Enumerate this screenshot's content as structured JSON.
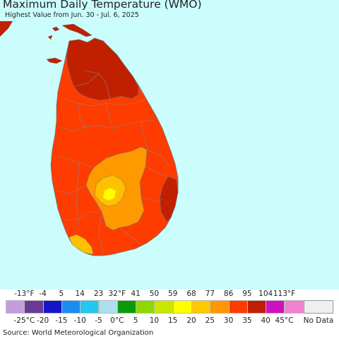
{
  "title": "Maximum Daily Temperature (WMO)",
  "subtitle": "Highest Value from Jun. 30 - Jul. 6, 2025",
  "source": "Source: World Meteorological Organization",
  "colors": {
    "ocean": "#cbfdfd",
    "land_base": "#ff3c00",
    "hot": "#c02000",
    "mid_orange": "#ff9900",
    "light_orange": "#ffc000",
    "yellow": "#ffff00",
    "border": "#777777"
  },
  "legend": {
    "fahrenheit_labels": [
      "-13°F",
      "-4",
      "5",
      "14",
      "23",
      "32°F",
      "41",
      "50",
      "59",
      "68",
      "77",
      "86",
      "95",
      "104",
      "113°F"
    ],
    "celsius_labels": [
      "-25°C",
      "-20",
      "-15",
      "-10",
      "-5",
      "0°C",
      "5",
      "10",
      "15",
      "20",
      "25",
      "30",
      "35",
      "40",
      "45°C"
    ],
    "swatches": [
      "#c49ddf",
      "#6a3b94",
      "#1515c8",
      "#1d8cf0",
      "#21c8f0",
      "#ace0f0",
      "#0a9a0a",
      "#8ed800",
      "#c8e800",
      "#ffff00",
      "#ffc800",
      "#ff9600",
      "#ff3c00",
      "#c01e00",
      "#d010c0",
      "#f080d0"
    ],
    "no_data_label": "No Data",
    "no_data_color": "#f0eef1"
  }
}
